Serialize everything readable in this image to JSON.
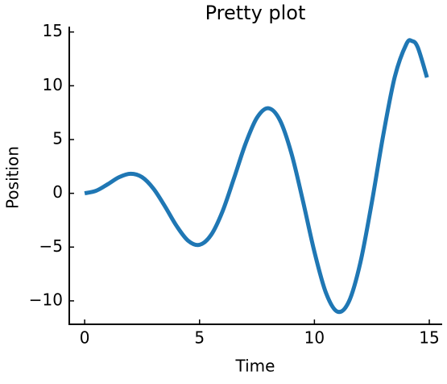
{
  "chart_data": {
    "type": "line",
    "title": "Pretty plot",
    "xlabel": "Time",
    "ylabel": "Position",
    "x": [
      0,
      0.5,
      1,
      1.5,
      2,
      2.5,
      3,
      3.5,
      4,
      4.5,
      5,
      5.5,
      6,
      6.5,
      7,
      7.5,
      8,
      8.5,
      9,
      9.5,
      10,
      10.5,
      11,
      11.5,
      12,
      12.5,
      13,
      13.5,
      14,
      14.25,
      14.5,
      14.9
    ],
    "series": [
      {
        "color": "#1f77b4",
        "values": [
          0,
          0.24,
          0.84,
          1.5,
          1.82,
          1.5,
          0.42,
          -1.23,
          -3.03,
          -4.4,
          -4.79,
          -3.88,
          -1.68,
          1.4,
          4.6,
          7.03,
          7.91,
          6.79,
          3.71,
          -0.71,
          -5.44,
          -9.24,
          -11.0,
          -10.07,
          -6.44,
          -0.83,
          5.46,
          10.85,
          13.87,
          14.16,
          13.56,
          10.77
        ]
      }
    ],
    "xlim": [
      -0.67,
      15.56
    ],
    "ylim": [
      -12.18,
      15.5
    ],
    "xticks": [
      0,
      5,
      10,
      15
    ],
    "yticks": [
      {
        "value": -10,
        "label": "−10"
      },
      {
        "value": -5,
        "label": "−5"
      },
      0,
      5,
      10,
      15
    ],
    "grid": false
  }
}
